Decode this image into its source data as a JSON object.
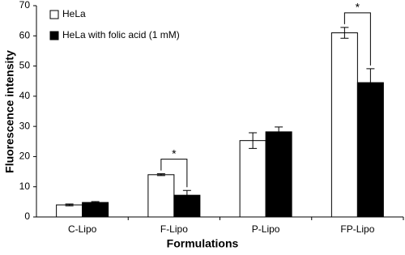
{
  "chart_data": {
    "type": "bar",
    "xlabel": "Formulations",
    "ylabel": "Fluorescence intensity",
    "categories": [
      "C-Lipo",
      "F-Lipo",
      "P-Lipo",
      "FP-Lipo"
    ],
    "series": [
      {
        "name": "HeLa",
        "color": "#ffffff",
        "values": [
          4,
          14,
          25.3,
          61
        ],
        "errors": [
          0.3,
          0.3,
          2.6,
          1.8
        ]
      },
      {
        "name": "HeLa with folic acid (1 mM)",
        "color": "#000000",
        "values": [
          4.8,
          7.2,
          28.2,
          44.5
        ],
        "errors": [
          0.3,
          1.6,
          1.6,
          4.6
        ]
      }
    ],
    "ylim": [
      0,
      70
    ],
    "yticks": [
      0,
      10,
      20,
      30,
      40,
      50,
      60,
      70
    ],
    "legend": "upper left",
    "annotations": [
      {
        "text": "*",
        "category": "F-Lipo"
      },
      {
        "text": "*",
        "category": "FP-Lipo"
      }
    ]
  }
}
